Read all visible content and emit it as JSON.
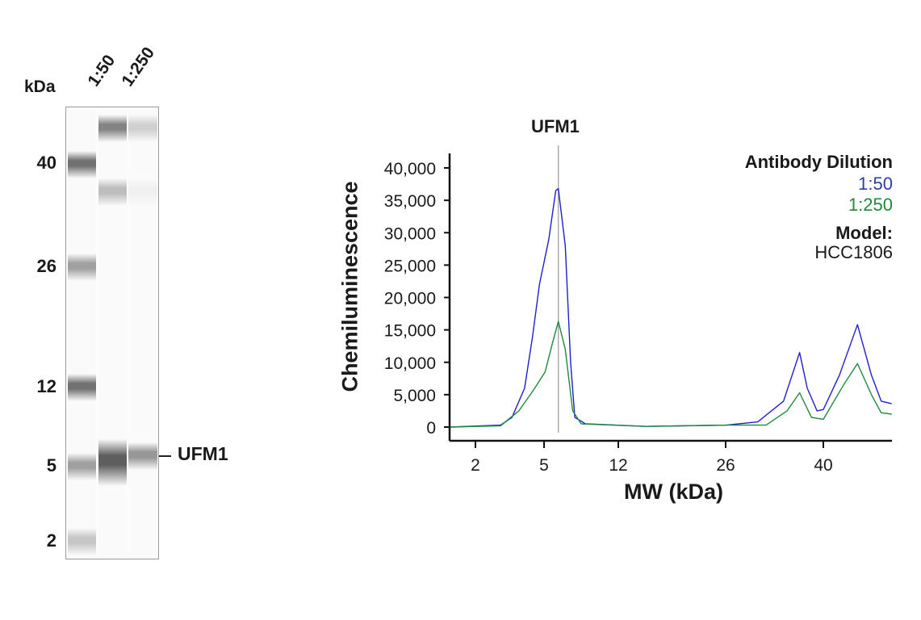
{
  "gel": {
    "unit_label": "kDa",
    "lane_labels": [
      "1:50",
      "1:250"
    ],
    "marker_labels": [
      "40",
      "26",
      "12",
      "5",
      "2"
    ],
    "target_label": "UFM1",
    "lanes": [
      {
        "name": "ladder",
        "bands": [
          {
            "mw": 40,
            "intensity": 0.75
          },
          {
            "mw": 26,
            "intensity": 0.5
          },
          {
            "mw": 12,
            "intensity": 0.75
          },
          {
            "mw": 5,
            "intensity": 0.5
          },
          {
            "mw": 2,
            "intensity": 0.3
          }
        ]
      },
      {
        "name": "1:50",
        "bands": [
          {
            "mw": 45,
            "intensity": 0.65
          },
          {
            "mw": 36.3,
            "intensity": 0.35
          },
          {
            "mw": 5.9,
            "intensity": 0.85,
            "broad": true
          }
        ]
      },
      {
        "name": "1:250",
        "bands": [
          {
            "mw": 45,
            "intensity": 0.25
          },
          {
            "mw": 36.3,
            "intensity": 0.08
          },
          {
            "mw": 5.9,
            "intensity": 0.55
          }
        ]
      }
    ]
  },
  "chart_data": {
    "type": "line",
    "title": "UFM1",
    "xlabel": "MW (kDa)",
    "ylabel": "Chemiluminescence",
    "x_ticks": [
      2,
      5,
      12,
      26,
      40
    ],
    "y_ticks": [
      0,
      5000,
      10000,
      15000,
      20000,
      25000,
      30000,
      35000,
      40000
    ],
    "y_tick_labels": [
      "0",
      "5,000",
      "10,000",
      "15,000",
      "20,000",
      "25,000",
      "30,000",
      "35,000",
      "40,000"
    ],
    "ylim": [
      0,
      40000
    ],
    "marker_line_mw": 6.35,
    "grid": false,
    "legend": {
      "title": "Antibody Dilution",
      "position": "top-right",
      "model_label": "Model:",
      "model_value": "HCC1806"
    },
    "series": [
      {
        "name": "1:50",
        "color": "#1f1fd0",
        "x": [
          0.9,
          3.1,
          3.6,
          4.15,
          4.5,
          4.8,
          5.45,
          6.1,
          6.35,
          7.0,
          7.5,
          7.9,
          8.9,
          15.6,
          26.1,
          30.6,
          34.3,
          36.6,
          37.7,
          39.1,
          40,
          42.3,
          44.9,
          46.9,
          48.3,
          49.8
        ],
        "y": [
          0,
          300,
          1500,
          6000,
          14000,
          22000,
          29000,
          36500,
          36800,
          28000,
          10000,
          1500,
          500,
          100,
          300,
          800,
          4000,
          11500,
          6000,
          2500,
          2700,
          8000,
          15800,
          8000,
          4000,
          3600
        ]
      },
      {
        "name": "1:250",
        "color": "#1f8a3a",
        "x": [
          0.9,
          3.1,
          3.9,
          4.5,
          5.1,
          5.8,
          6.35,
          7.0,
          7.7,
          8.5,
          15.6,
          26.1,
          31.8,
          34.8,
          36.6,
          38.3,
          40,
          42.9,
          44.9,
          46.9,
          48.3,
          49.8
        ],
        "y": [
          0,
          200,
          2500,
          5500,
          8500,
          13000,
          16300,
          12000,
          2500,
          500,
          100,
          300,
          300,
          2500,
          5300,
          1500,
          1200,
          6500,
          9800,
          5000,
          2200,
          2000
        ]
      }
    ],
    "legend_colors": {
      "1:50": "#2e3f9e",
      "1:250": "#1f8a3a"
    }
  }
}
